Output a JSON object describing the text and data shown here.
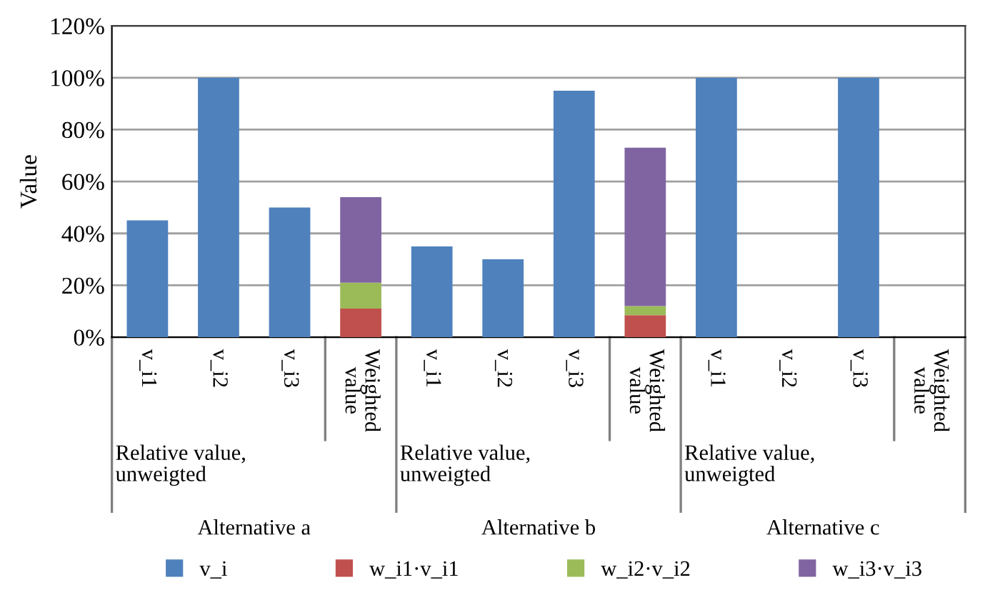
{
  "chart_data": {
    "type": "bar",
    "ylabel": "Value",
    "stacked": true,
    "categories": [
      "v_i1",
      "v_i2",
      "v_i3",
      "Weighted value",
      "v_i1",
      "v_i2",
      "v_i3",
      "Weighted value",
      "v_i1",
      "v_i2",
      "v_i3",
      "Weighted value"
    ],
    "series": [
      {
        "name": "v_i",
        "color": "#4f81bd",
        "values": [
          45,
          100,
          50,
          null,
          35,
          30,
          95,
          null,
          100,
          0,
          100,
          null
        ]
      },
      {
        "name": "w_i1·v_i1",
        "color": "#c0504d",
        "values": [
          null,
          null,
          null,
          11,
          null,
          null,
          null,
          8.5,
          null,
          null,
          null,
          null
        ]
      },
      {
        "name": "w_i2·v_i2",
        "color": "#9bbb59",
        "values": [
          null,
          null,
          null,
          10,
          null,
          null,
          null,
          3.5,
          null,
          null,
          null,
          null
        ]
      },
      {
        "name": "w_i3·v_i3",
        "color": "#8064a2",
        "values": [
          null,
          null,
          null,
          33,
          null,
          null,
          null,
          61,
          null,
          null,
          null,
          null
        ]
      }
    ],
    "ylim": [
      0,
      120
    ],
    "yticks": [
      {
        "value": 0,
        "label": "0%"
      },
      {
        "value": 20,
        "label": "20%"
      },
      {
        "value": 40,
        "label": "40%"
      },
      {
        "value": 60,
        "label": "60%"
      },
      {
        "value": 80,
        "label": "80%"
      },
      {
        "value": 100,
        "label": "100%"
      },
      {
        "value": 120,
        "label": "120%"
      }
    ],
    "annotations": [
      "Relative value, unweigted",
      "Alternative a",
      "Relative value, unweigted",
      "Alternative b",
      "Relative value, unweigted",
      "Alternative c"
    ],
    "grid": "y",
    "legend": "bottom"
  }
}
